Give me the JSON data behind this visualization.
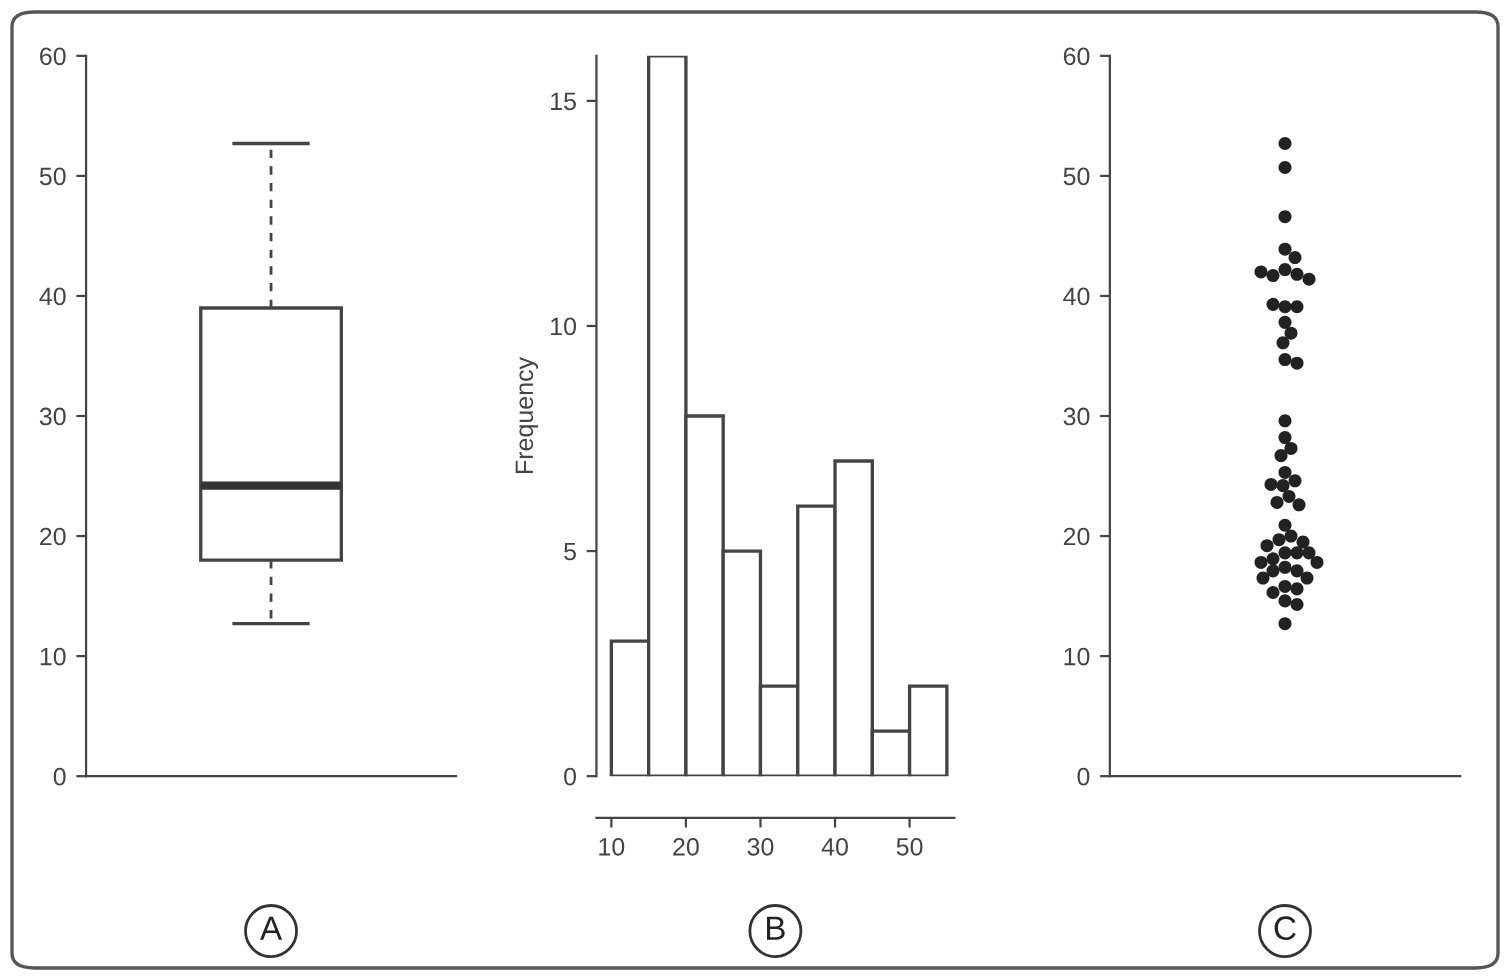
{
  "chart_data": [
    {
      "type": "box",
      "categories": [
        null
      ],
      "boxes": [
        {
          "low": 12.7,
          "q1": 18,
          "median": 24.2,
          "q3": 39,
          "high": 52.7
        }
      ],
      "color": "#ffffff",
      "ylim": [
        0,
        60
      ],
      "yticks": [
        0,
        10,
        20,
        30,
        40,
        50,
        60
      ],
      "tick_labels": "y",
      "annotations": [
        "A"
      ]
    },
    {
      "type": "histogram",
      "bins": [
        10,
        15,
        20,
        25,
        30,
        35,
        40,
        45,
        50,
        55
      ],
      "values": [
        3,
        16,
        8,
        5,
        2,
        6,
        7,
        1,
        2
      ],
      "color": "#ffffff",
      "ylabel": "Frequency",
      "xlim": [
        8,
        56
      ],
      "xticks": [
        10,
        20,
        30,
        40,
        50
      ],
      "ylim": [
        0,
        16
      ],
      "yticks": [
        0,
        5,
        10,
        15
      ],
      "annotations": [
        "B"
      ]
    },
    {
      "type": "scatter",
      "marker": "circle",
      "categories": [
        null
      ],
      "ylim": [
        0,
        60
      ],
      "yticks": [
        0,
        10,
        20,
        30,
        40,
        50,
        60
      ],
      "tick_labels": "y",
      "annotations": [
        "C"
      ],
      "series": [
        {
          "color": "#222222",
          "x": [
            null,
            null,
            null,
            null,
            null,
            null,
            null,
            null,
            null,
            null,
            null,
            null,
            null,
            null,
            null,
            null,
            null,
            null,
            null,
            null,
            null,
            null,
            null,
            null,
            null,
            null,
            null,
            null,
            null,
            null,
            null,
            null,
            null,
            null,
            null,
            null,
            null,
            null,
            null,
            null,
            null,
            null,
            null,
            null,
            null,
            null,
            null,
            null,
            null,
            null,
            null
          ],
          "values": [
            52.7,
            50.7,
            46.6,
            43.9,
            43.2,
            42.2,
            41.8,
            41.7,
            41.4,
            42.0,
            39.1,
            39.1,
            39.3,
            37.8,
            36.9,
            36.1,
            34.7,
            34.4,
            29.6,
            28.2,
            27.3,
            26.7,
            25.3,
            24.6,
            24.2,
            24.3,
            23.3,
            22.8,
            22.6,
            20.9,
            20.0,
            19.7,
            19.5,
            19.2,
            18.6,
            18.6,
            18.6,
            18.1,
            17.4,
            17.8,
            17.8,
            17.1,
            17.1,
            16.5,
            16.5,
            15.8,
            15.6,
            15.3,
            14.6,
            14.3,
            12.7
          ]
        }
      ]
    }
  ]
}
